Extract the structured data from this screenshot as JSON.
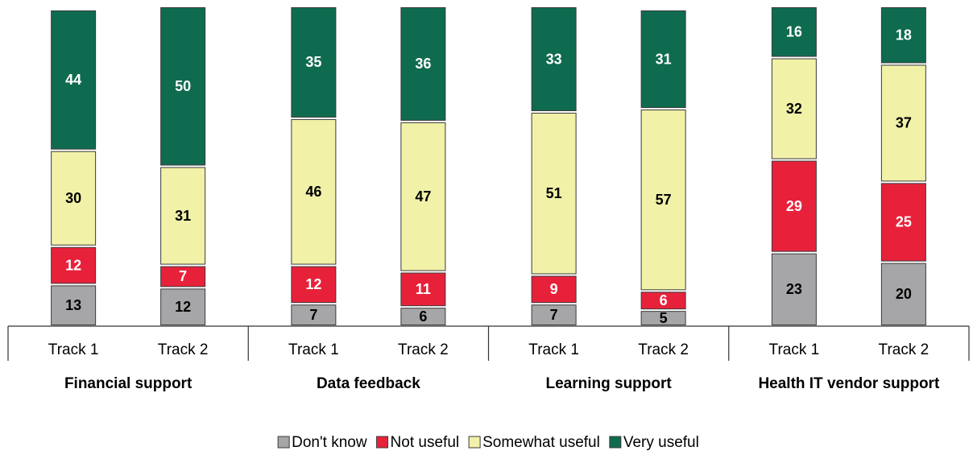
{
  "chart_data": {
    "type": "stacked_bar",
    "groups": [
      "Financial support",
      "Data feedback",
      "Learning support",
      "Health IT vendor support"
    ],
    "categories": [
      "Track 1",
      "Track 2",
      "Track 1",
      "Track 2",
      "Track 1",
      "Track 2",
      "Track 1",
      "Track 2"
    ],
    "series": [
      {
        "name": "Don't know",
        "color": "#a6a6a8",
        "values": [
          13,
          12,
          7,
          6,
          7,
          5,
          23,
          20
        ]
      },
      {
        "name": "Not useful",
        "color": "#e8213a",
        "values": [
          12,
          7,
          12,
          11,
          9,
          6,
          29,
          25
        ]
      },
      {
        "name": "Somewhat useful",
        "color": "#f1f1a8",
        "values": [
          30,
          31,
          46,
          47,
          51,
          57,
          32,
          37
        ]
      },
      {
        "name": "Very useful",
        "color": "#0f6b4f",
        "values": [
          44,
          50,
          35,
          36,
          33,
          31,
          16,
          18
        ]
      }
    ],
    "legend": "bottom"
  }
}
